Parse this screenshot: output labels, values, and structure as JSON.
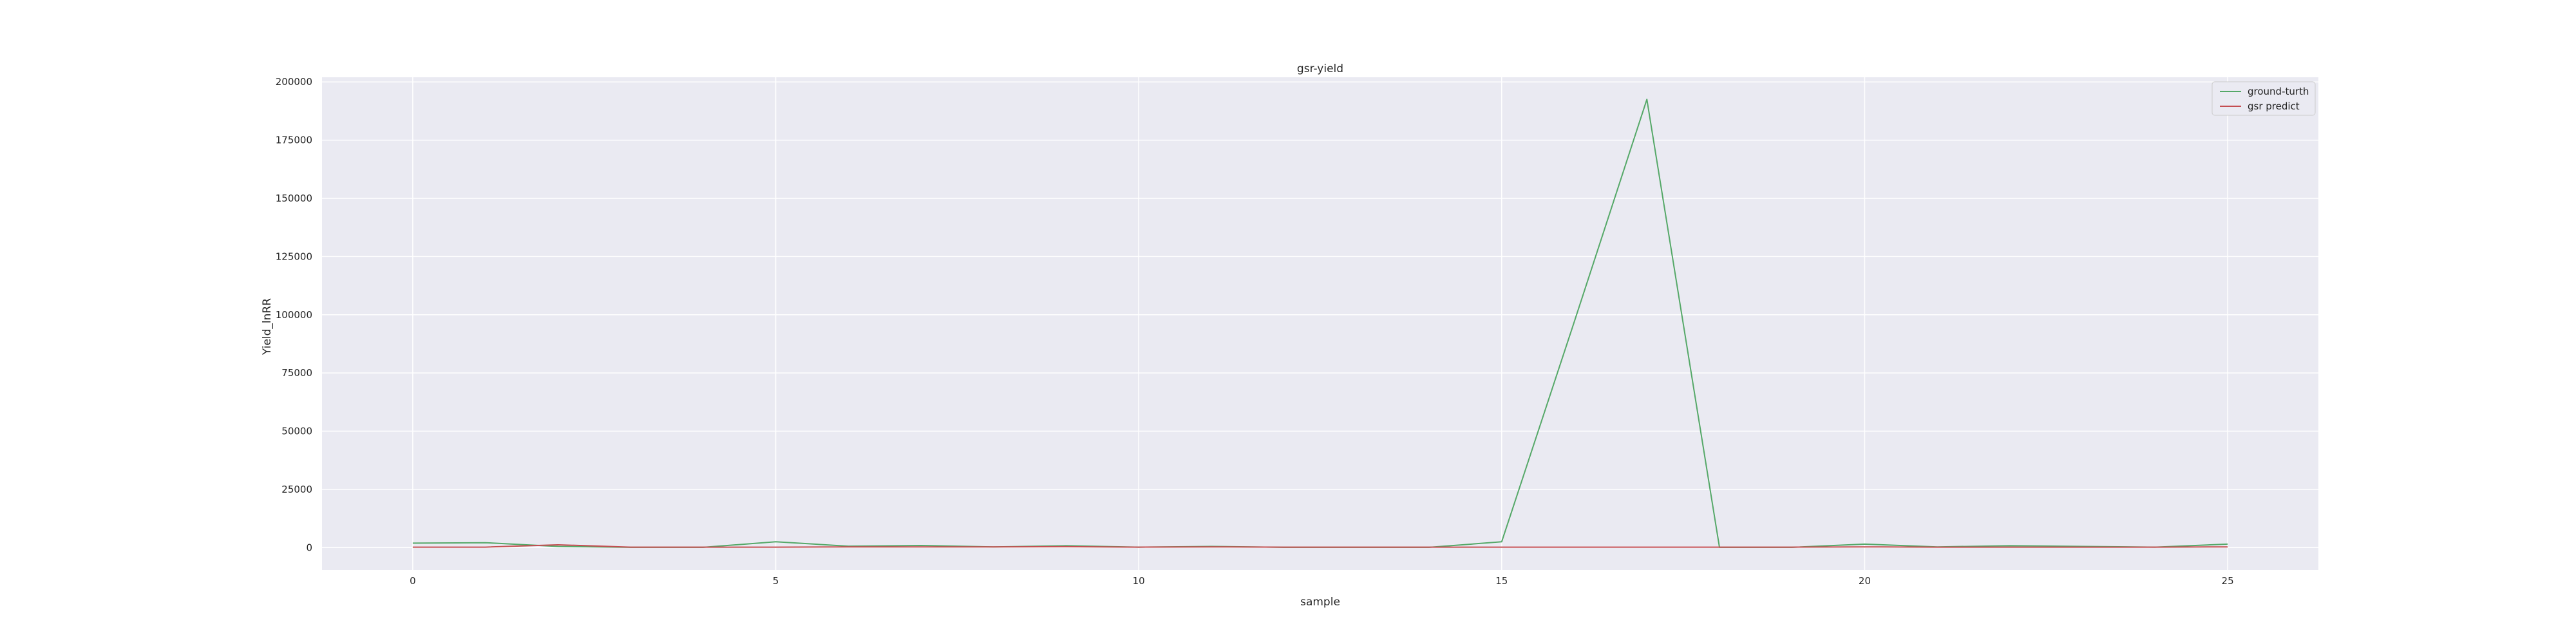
{
  "chart_data": {
    "type": "line",
    "title": "gsr-yield",
    "xlabel": "sample",
    "ylabel": "Yield_lnRR",
    "xlim": [
      -1.25,
      26.25
    ],
    "ylim": [
      -9600,
      202000
    ],
    "xticks": [
      0,
      5,
      10,
      15,
      20,
      25
    ],
    "yticks": [
      0,
      25000,
      50000,
      75000,
      100000,
      125000,
      150000,
      175000,
      200000
    ],
    "grid": true,
    "legend_position": "top-right",
    "x": [
      0,
      1,
      2,
      3,
      4,
      5,
      6,
      7,
      8,
      9,
      10,
      11,
      12,
      13,
      14,
      15,
      16,
      17,
      18,
      19,
      20,
      21,
      22,
      23,
      24,
      25
    ],
    "series": [
      {
        "name": "ground-turth",
        "color": "#55a868",
        "values": [
          1900,
          2100,
          500,
          100,
          100,
          2500,
          600,
          900,
          300,
          800,
          200,
          500,
          100,
          100,
          100,
          2500,
          97000,
          192500,
          100,
          100,
          1500,
          300,
          800,
          500,
          200,
          1500
        ]
      },
      {
        "name": "gsr predict",
        "color": "#c44e52",
        "values": [
          200,
          200,
          1200,
          200,
          200,
          200,
          300,
          300,
          300,
          400,
          200,
          300,
          200,
          200,
          200,
          200,
          200,
          200,
          200,
          200,
          300,
          200,
          200,
          200,
          200,
          300
        ]
      }
    ]
  }
}
